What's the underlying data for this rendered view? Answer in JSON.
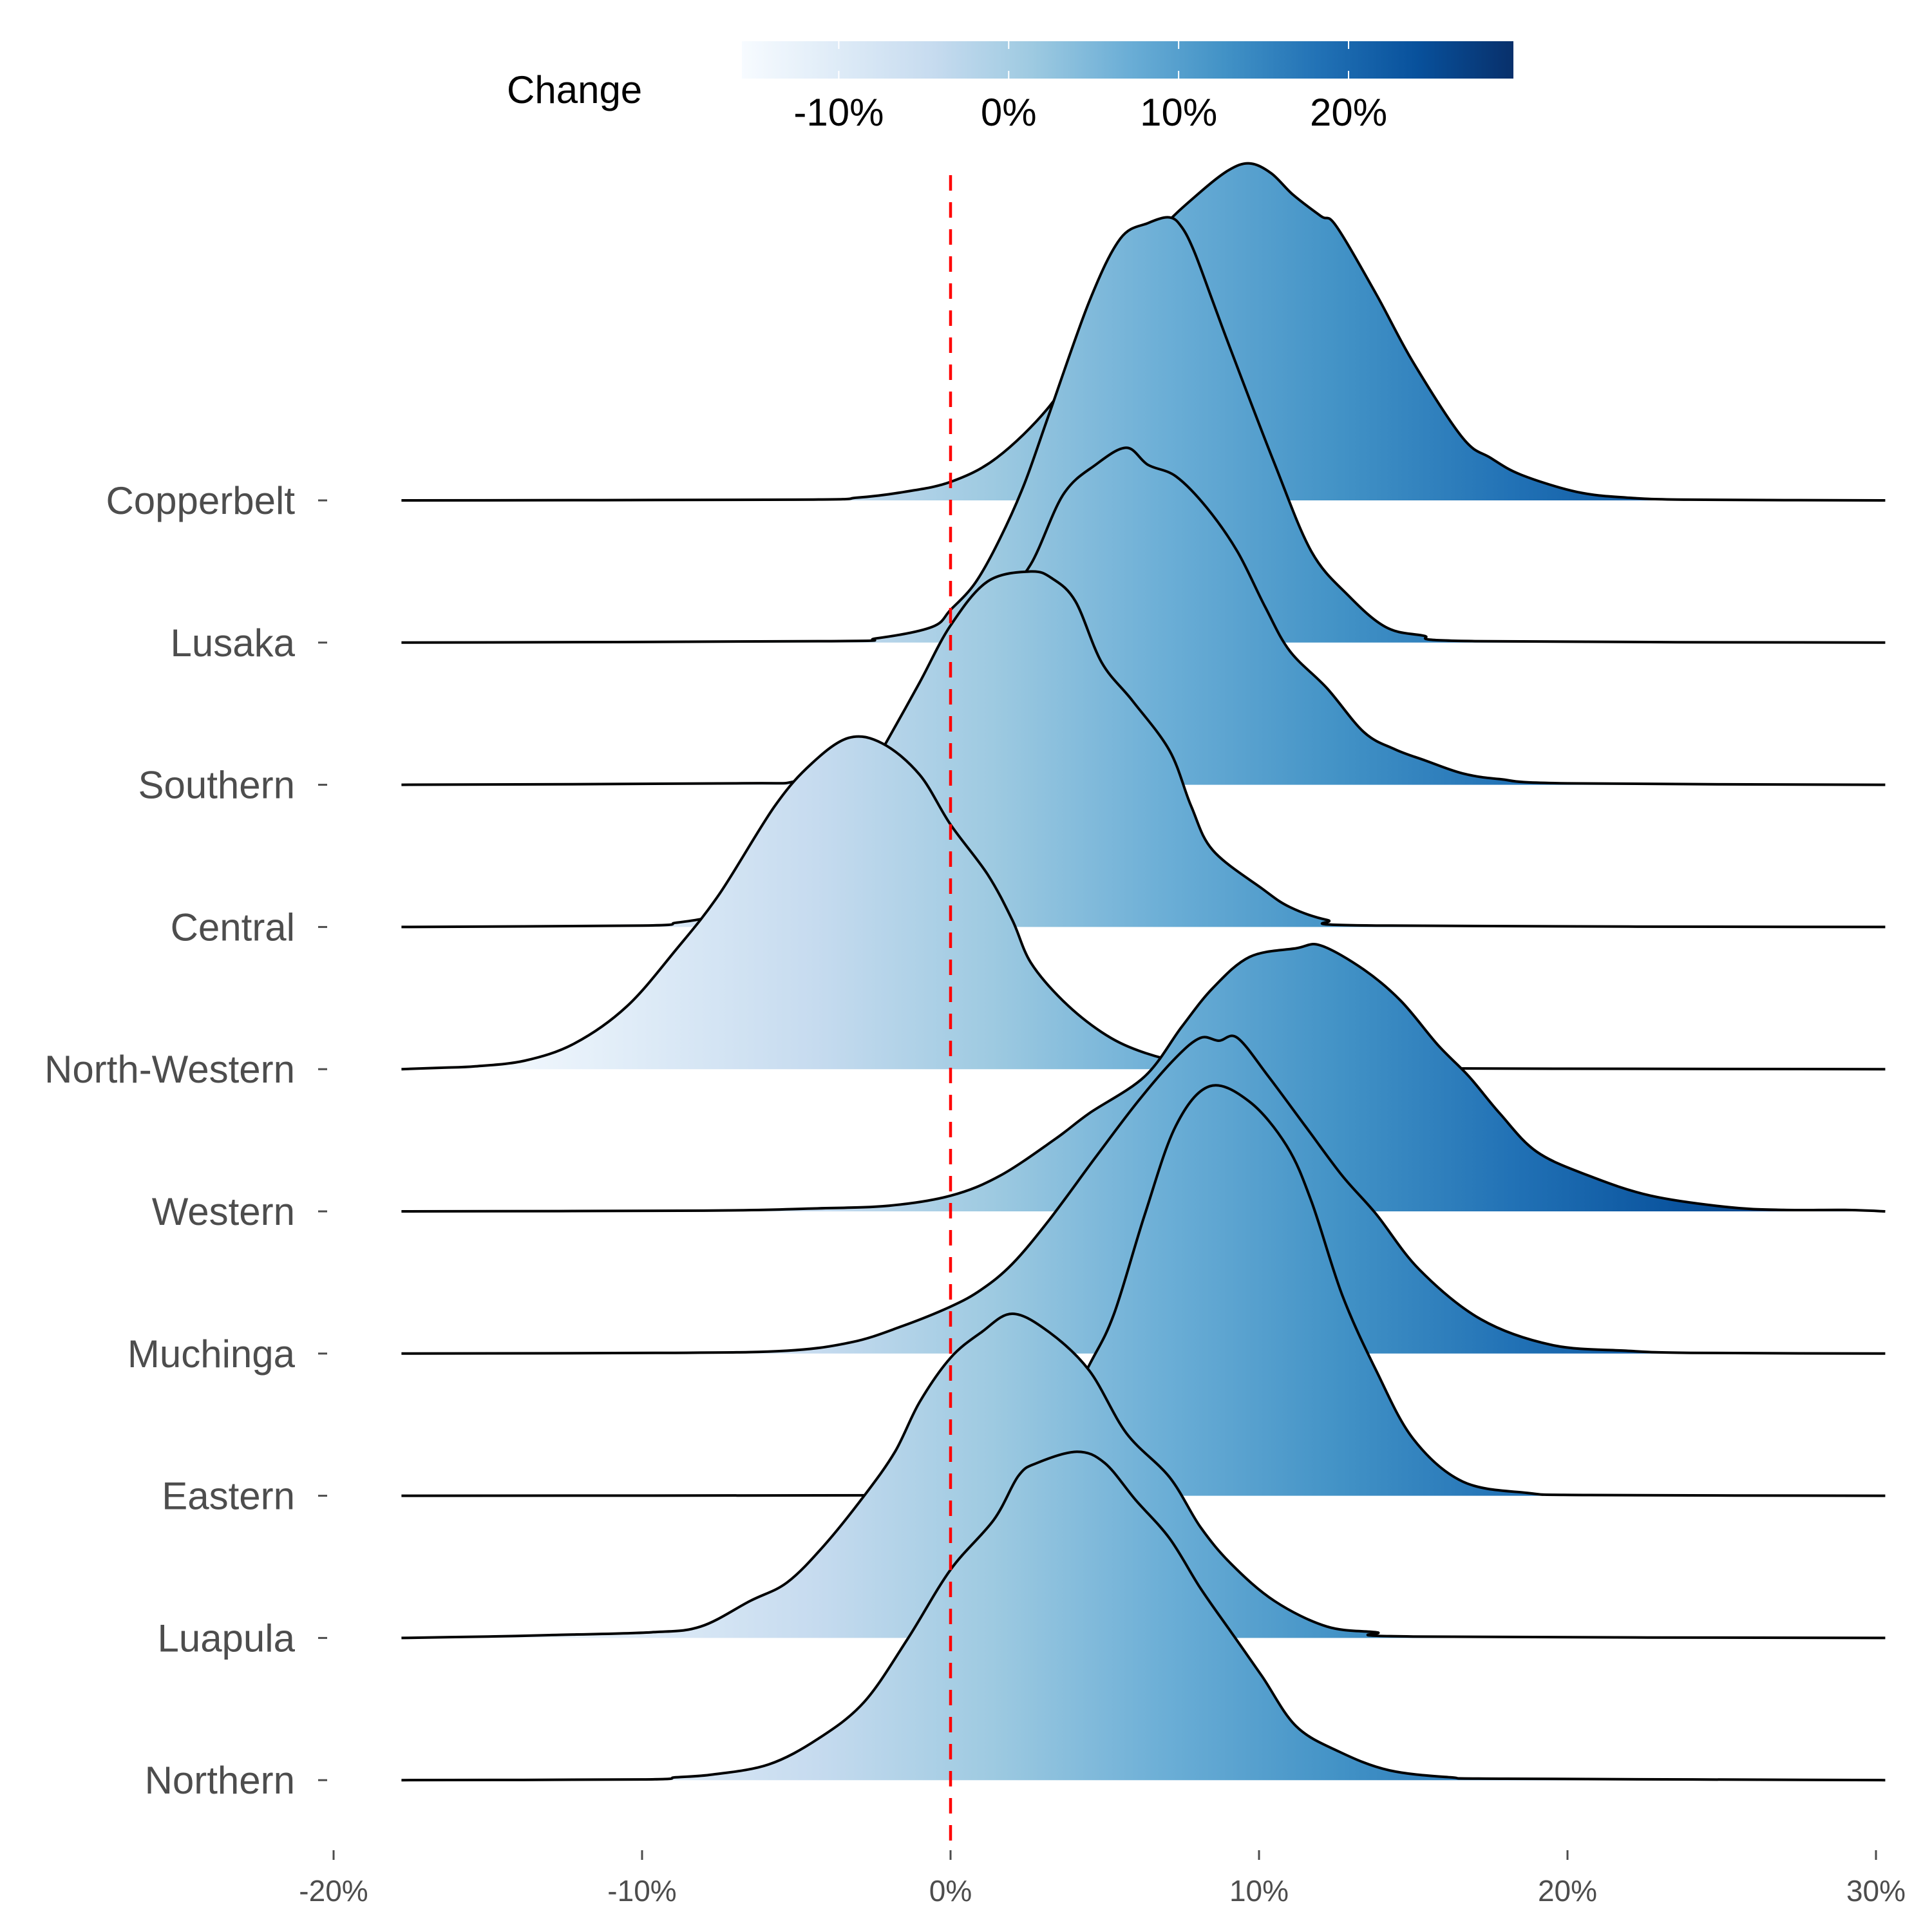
{
  "chart_data": {
    "type": "ridgeline",
    "title": "",
    "xlabel": "",
    "ylabel": "",
    "xlim": [
      -20,
      30
    ],
    "x_ticks": [
      -20,
      -10,
      0,
      10,
      20,
      30
    ],
    "x_tick_labels": [
      "-20%",
      "-10%",
      "0%",
      "10%",
      "20%",
      "30%"
    ],
    "x_units": "percent change",
    "grid": false,
    "reference_line": {
      "x": 0,
      "color": "#ff0000",
      "style": "dashed"
    },
    "fill": {
      "mode": "gradient by x value",
      "palette": "Blues",
      "stops": [
        "#f7fbff",
        "#deebf7",
        "#c6dbef",
        "#9ecae1",
        "#6baed6",
        "#4292c6",
        "#2171b5",
        "#08519c",
        "#08306b"
      ],
      "range": [
        -15.7,
        29.7
      ]
    },
    "legend": {
      "title": "Change",
      "position": "top",
      "tick_values": [
        -10,
        0,
        10,
        20
      ],
      "tick_labels": [
        "-10%",
        "0%",
        "10%",
        "20%"
      ]
    },
    "density_support": [
      -17.8,
      30.3
    ],
    "density_height_units": "multiples of row spacing",
    "categories": [
      "Copperbelt",
      "Lusaka",
      "Southern",
      "Central",
      "North-Western",
      "Western",
      "Muchinga",
      "Eastern",
      "Luapula",
      "Northern"
    ],
    "series": [
      {
        "name": "Copperbelt",
        "peak": 9.7,
        "points": [
          [
            -17.8,
            0
          ],
          [
            -5,
            0.005
          ],
          [
            -3,
            0.02
          ],
          [
            -1.5,
            0.06
          ],
          [
            0,
            0.13
          ],
          [
            1.5,
            0.3
          ],
          [
            3.2,
            0.66
          ],
          [
            4.5,
            1.1
          ],
          [
            5.7,
            1.55
          ],
          [
            6.8,
            1.9
          ],
          [
            8,
            2.15
          ],
          [
            9,
            2.32
          ],
          [
            9.7,
            2.37
          ],
          [
            10.4,
            2.3
          ],
          [
            11.1,
            2.15
          ],
          [
            12,
            2.0
          ],
          [
            12.5,
            1.93
          ],
          [
            13.8,
            1.45
          ],
          [
            15,
            0.97
          ],
          [
            16.6,
            0.44
          ],
          [
            17.5,
            0.3
          ],
          [
            18.5,
            0.18
          ],
          [
            20.3,
            0.06
          ],
          [
            21.9,
            0.02
          ],
          [
            24,
            0.005
          ],
          [
            30.3,
            0
          ]
        ]
      },
      {
        "name": "Lusaka",
        "peak": 7.1,
        "points": [
          [
            -17.8,
            0
          ],
          [
            -4,
            0.01
          ],
          [
            -2.4,
            0.03
          ],
          [
            -0.6,
            0.11
          ],
          [
            0,
            0.23
          ],
          [
            0.8,
            0.42
          ],
          [
            1.6,
            0.73
          ],
          [
            2.4,
            1.12
          ],
          [
            3.2,
            1.61
          ],
          [
            4.5,
            2.4
          ],
          [
            5.5,
            2.84
          ],
          [
            6.4,
            2.95
          ],
          [
            7.1,
            2.99
          ],
          [
            7.5,
            2.92
          ],
          [
            7.9,
            2.75
          ],
          [
            8.5,
            2.4
          ],
          [
            9.1,
            2.05
          ],
          [
            10.5,
            1.26
          ],
          [
            11.7,
            0.64
          ],
          [
            12.9,
            0.33
          ],
          [
            14.1,
            0.11
          ],
          [
            15.3,
            0.05
          ],
          [
            17,
            0.01
          ],
          [
            30.3,
            0
          ]
        ]
      },
      {
        "name": "Southern",
        "peak": 5.7,
        "points": [
          [
            -17.8,
            0
          ],
          [
            -7,
            0.01
          ],
          [
            -4.9,
            0.03
          ],
          [
            -2.4,
            0.24
          ],
          [
            -1,
            0.55
          ],
          [
            0,
            0.85
          ],
          [
            1,
            1.2
          ],
          [
            1.6,
            1.3
          ],
          [
            2.6,
            1.55
          ],
          [
            3.65,
            2.04
          ],
          [
            4.7,
            2.25
          ],
          [
            5.7,
            2.37
          ],
          [
            6.4,
            2.25
          ],
          [
            7.3,
            2.17
          ],
          [
            8.3,
            1.95
          ],
          [
            9.3,
            1.64
          ],
          [
            10.2,
            1.25
          ],
          [
            11,
            0.94
          ],
          [
            12.2,
            0.68
          ],
          [
            13.4,
            0.37
          ],
          [
            14.4,
            0.25
          ],
          [
            15.4,
            0.17
          ],
          [
            16.6,
            0.08
          ],
          [
            17.8,
            0.04
          ],
          [
            20,
            0.01
          ],
          [
            30.3,
            0
          ]
        ]
      },
      {
        "name": "Central",
        "peak": 2.6,
        "points": [
          [
            -17.8,
            0
          ],
          [
            -10,
            0.01
          ],
          [
            -8.9,
            0.03
          ],
          [
            -8,
            0.06
          ],
          [
            -7,
            0.12
          ],
          [
            -6,
            0.22
          ],
          [
            -5,
            0.38
          ],
          [
            -4,
            0.6
          ],
          [
            -3,
            0.95
          ],
          [
            -1.95,
            1.35
          ],
          [
            -1,
            1.72
          ],
          [
            0,
            2.12
          ],
          [
            1.2,
            2.43
          ],
          [
            2.6,
            2.5
          ],
          [
            3.3,
            2.45
          ],
          [
            4.05,
            2.29
          ],
          [
            4.9,
            1.86
          ],
          [
            5.9,
            1.59
          ],
          [
            7.1,
            1.24
          ],
          [
            7.8,
            0.85
          ],
          [
            8.5,
            0.54
          ],
          [
            10.1,
            0.27
          ],
          [
            11,
            0.14
          ],
          [
            12.2,
            0.05
          ],
          [
            13.8,
            0.01
          ],
          [
            30.3,
            0
          ]
        ]
      },
      {
        "name": "North-Western",
        "peak": -3.3,
        "points": [
          [
            -17.8,
            0
          ],
          [
            -16.5,
            0.01
          ],
          [
            -15.4,
            0.02
          ],
          [
            -13.8,
            0.06
          ],
          [
            -12.2,
            0.18
          ],
          [
            -10.5,
            0.44
          ],
          [
            -8.9,
            0.84
          ],
          [
            -7.5,
            1.23
          ],
          [
            -5.7,
            1.85
          ],
          [
            -4.5,
            2.15
          ],
          [
            -3.3,
            2.33
          ],
          [
            -2.2,
            2.29
          ],
          [
            -1,
            2.07
          ],
          [
            0,
            1.72
          ],
          [
            1.2,
            1.37
          ],
          [
            2,
            1.05
          ],
          [
            2.6,
            0.75
          ],
          [
            3.65,
            0.48
          ],
          [
            4.9,
            0.26
          ],
          [
            6.1,
            0.13
          ],
          [
            7.7,
            0.04
          ],
          [
            9.5,
            0.01
          ],
          [
            30.3,
            0
          ]
        ]
      },
      {
        "name": "Western",
        "peak": 12.0,
        "points": [
          [
            -17.8,
            0
          ],
          [
            -8,
            0.005
          ],
          [
            -4.5,
            0.02
          ],
          [
            -2,
            0.04
          ],
          [
            0,
            0.11
          ],
          [
            1.6,
            0.25
          ],
          [
            3.4,
            0.51
          ],
          [
            4.5,
            0.69
          ],
          [
            6.3,
            0.95
          ],
          [
            7.5,
            1.3
          ],
          [
            8.5,
            1.57
          ],
          [
            9.7,
            1.79
          ],
          [
            11.2,
            1.85
          ],
          [
            12,
            1.87
          ],
          [
            13.4,
            1.7
          ],
          [
            14.6,
            1.48
          ],
          [
            15.8,
            1.17
          ],
          [
            16.8,
            0.95
          ],
          [
            17.8,
            0.69
          ],
          [
            19,
            0.42
          ],
          [
            20.7,
            0.25
          ],
          [
            22.7,
            0.11
          ],
          [
            25.2,
            0.03
          ],
          [
            27,
            0.01
          ],
          [
            29,
            0.01
          ],
          [
            30.3,
            0
          ]
        ]
      },
      {
        "name": "Muchinga",
        "peak": 8.7,
        "points": [
          [
            -17.8,
            0
          ],
          [
            -9,
            0.005
          ],
          [
            -5.3,
            0.02
          ],
          [
            -3.2,
            0.08
          ],
          [
            -1.6,
            0.19
          ],
          [
            0,
            0.33
          ],
          [
            1,
            0.45
          ],
          [
            2,
            0.63
          ],
          [
            3.2,
            0.94
          ],
          [
            4.7,
            1.38
          ],
          [
            6.1,
            1.78
          ],
          [
            7.3,
            2.08
          ],
          [
            8.1,
            2.22
          ],
          [
            8.7,
            2.2
          ],
          [
            9.3,
            2.22
          ],
          [
            10.3,
            1.95
          ],
          [
            11.5,
            1.6
          ],
          [
            12.7,
            1.25
          ],
          [
            13.8,
            0.98
          ],
          [
            15.2,
            0.59
          ],
          [
            17.2,
            0.24
          ],
          [
            19.5,
            0.06
          ],
          [
            21.9,
            0.02
          ],
          [
            24,
            0.005
          ],
          [
            30.3,
            0
          ]
        ]
      },
      {
        "name": "Eastern",
        "peak": 8.4,
        "points": [
          [
            -17.8,
            0
          ],
          [
            -2,
            0.003
          ],
          [
            0,
            0.01
          ],
          [
            1.6,
            0.09
          ],
          [
            3.2,
            0.4
          ],
          [
            4.5,
            0.92
          ],
          [
            5.3,
            1.28
          ],
          [
            6.3,
            1.98
          ],
          [
            7.3,
            2.6
          ],
          [
            8.4,
            2.88
          ],
          [
            9.7,
            2.77
          ],
          [
            10.9,
            2.46
          ],
          [
            11.7,
            2.07
          ],
          [
            12.7,
            1.41
          ],
          [
            13.8,
            0.88
          ],
          [
            15,
            0.4
          ],
          [
            16.6,
            0.1
          ],
          [
            18.7,
            0.02
          ],
          [
            20.7,
            0.005
          ],
          [
            30.3,
            0
          ]
        ]
      },
      {
        "name": "Luapula",
        "peak": 2.0,
        "points": [
          [
            -17.8,
            0
          ],
          [
            -15,
            0.01
          ],
          [
            -13,
            0.02
          ],
          [
            -9.7,
            0.04
          ],
          [
            -8.1,
            0.08
          ],
          [
            -6.5,
            0.26
          ],
          [
            -5.3,
            0.39
          ],
          [
            -4.1,
            0.65
          ],
          [
            -2.8,
            1.0
          ],
          [
            -1.8,
            1.31
          ],
          [
            -1,
            1.66
          ],
          [
            0,
            1.97
          ],
          [
            1,
            2.15
          ],
          [
            2,
            2.28
          ],
          [
            3.2,
            2.15
          ],
          [
            4.5,
            1.88
          ],
          [
            5.7,
            1.44
          ],
          [
            7.1,
            1.13
          ],
          [
            8.1,
            0.78
          ],
          [
            9.1,
            0.52
          ],
          [
            10.5,
            0.26
          ],
          [
            12.2,
            0.08
          ],
          [
            13.8,
            0.04
          ],
          [
            15,
            0.01
          ],
          [
            30.3,
            0
          ]
        ]
      },
      {
        "name": "Northern",
        "peak": 4.1,
        "points": [
          [
            -17.8,
            0
          ],
          [
            -10,
            0.005
          ],
          [
            -8.9,
            0.02
          ],
          [
            -7.7,
            0.04
          ],
          [
            -5.9,
            0.11
          ],
          [
            -4.3,
            0.29
          ],
          [
            -2.8,
            0.55
          ],
          [
            -1.4,
            0.99
          ],
          [
            0,
            1.48
          ],
          [
            1.4,
            1.83
          ],
          [
            2.2,
            2.14
          ],
          [
            2.8,
            2.23
          ],
          [
            4.1,
            2.31
          ],
          [
            5,
            2.23
          ],
          [
            6,
            1.97
          ],
          [
            7.1,
            1.7
          ],
          [
            8.1,
            1.35
          ],
          [
            9.1,
            1.04
          ],
          [
            10.1,
            0.73
          ],
          [
            11.2,
            0.38
          ],
          [
            12.6,
            0.2
          ],
          [
            14.2,
            0.07
          ],
          [
            16.2,
            0.02
          ],
          [
            18,
            0.01
          ],
          [
            30.3,
            0
          ]
        ]
      }
    ]
  }
}
